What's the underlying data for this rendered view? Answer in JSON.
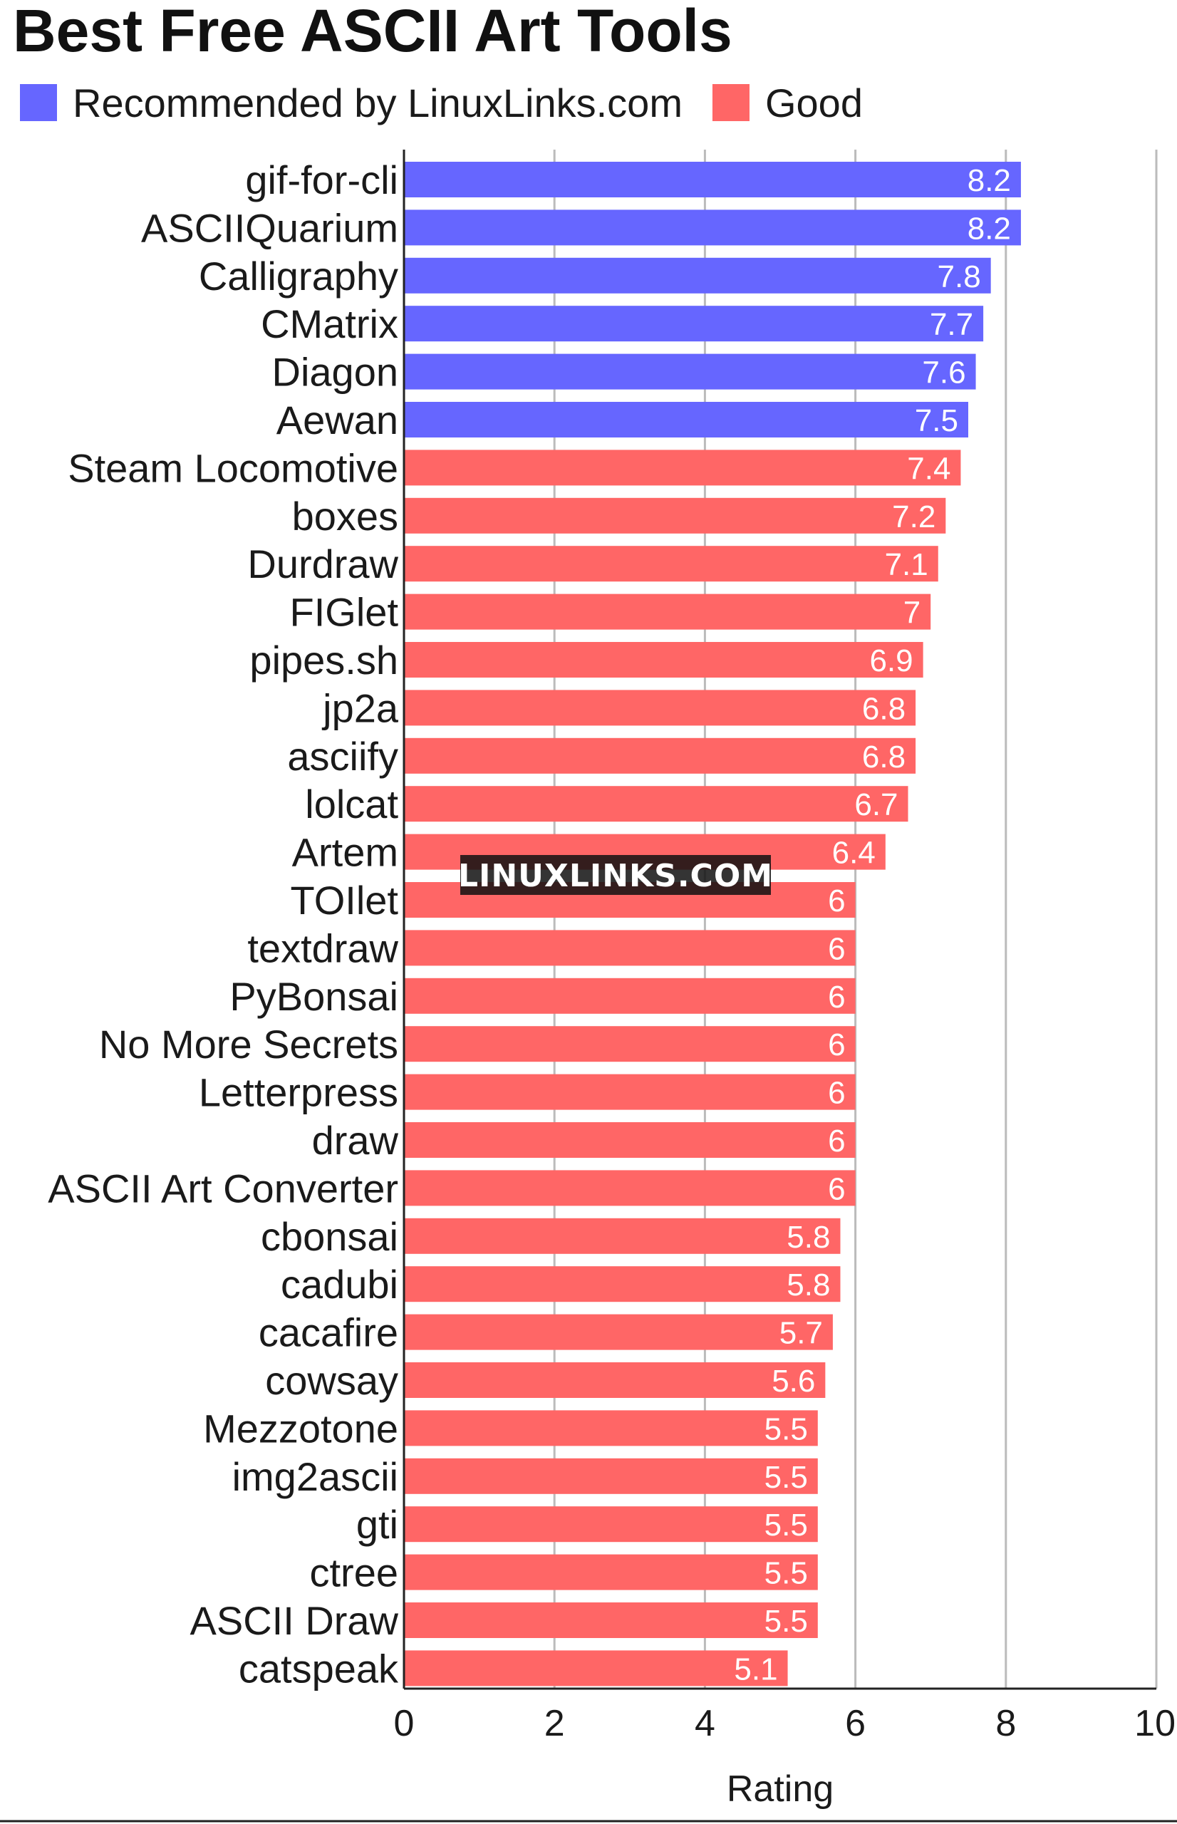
{
  "chart_data": {
    "type": "bar",
    "orientation": "horizontal",
    "title": "Best Free ASCII Art Tools",
    "xlabel": "Rating",
    "ylabel": "",
    "xlim": [
      0,
      10
    ],
    "xticks": [
      0,
      2,
      4,
      6,
      8,
      10
    ],
    "grid": "vertical",
    "legend_position": "top",
    "legend": [
      {
        "label": "Recommended by LinuxLinks.com",
        "color": "#6666ff"
      },
      {
        "label": "Good",
        "color": "#ff6666"
      }
    ],
    "watermark": "LINUXLINKS.COM",
    "categories": [
      "gif-for-cli",
      "ASCIIQuarium",
      "Calligraphy",
      "CMatrix",
      "Diagon",
      "Aewan",
      "Steam Locomotive",
      "boxes",
      "Durdraw",
      "FIGlet",
      "pipes.sh",
      "jp2a",
      "asciify",
      "lolcat",
      "Artem",
      "TOIlet",
      "textdraw",
      "PyBonsai",
      "No More Secrets",
      "Letterpress",
      "draw",
      "ASCII Art Converter",
      "cbonsai",
      "cadubi",
      "cacafire",
      "cowsay",
      "Mezzotone",
      "img2ascii",
      "gti",
      "ctree",
      "ASCII Draw",
      "catspeak"
    ],
    "values": [
      8.2,
      8.2,
      7.8,
      7.7,
      7.6,
      7.5,
      7.4,
      7.2,
      7.1,
      7,
      6.9,
      6.8,
      6.8,
      6.7,
      6.4,
      6,
      6,
      6,
      6,
      6,
      6,
      6,
      5.8,
      5.8,
      5.7,
      5.6,
      5.5,
      5.5,
      5.5,
      5.5,
      5.5,
      5.1
    ],
    "value_labels": [
      "8.2",
      "8.2",
      "7.8",
      "7.7",
      "7.6",
      "7.5",
      "7.4",
      "7.2",
      "7.1",
      "7",
      "6.9",
      "6.8",
      "6.8",
      "6.7",
      "6.4",
      "6",
      "6",
      "6",
      "6",
      "6",
      "6",
      "6",
      "5.8",
      "5.8",
      "5.7",
      "5.6",
      "5.5",
      "5.5",
      "5.5",
      "5.5",
      "5.5",
      "5.1"
    ],
    "groups": [
      "Recommended by LinuxLinks.com",
      "Recommended by LinuxLinks.com",
      "Recommended by LinuxLinks.com",
      "Recommended by LinuxLinks.com",
      "Recommended by LinuxLinks.com",
      "Recommended by LinuxLinks.com",
      "Good",
      "Good",
      "Good",
      "Good",
      "Good",
      "Good",
      "Good",
      "Good",
      "Good",
      "Good",
      "Good",
      "Good",
      "Good",
      "Good",
      "Good",
      "Good",
      "Good",
      "Good",
      "Good",
      "Good",
      "Good",
      "Good",
      "Good",
      "Good",
      "Good",
      "Good"
    ]
  }
}
